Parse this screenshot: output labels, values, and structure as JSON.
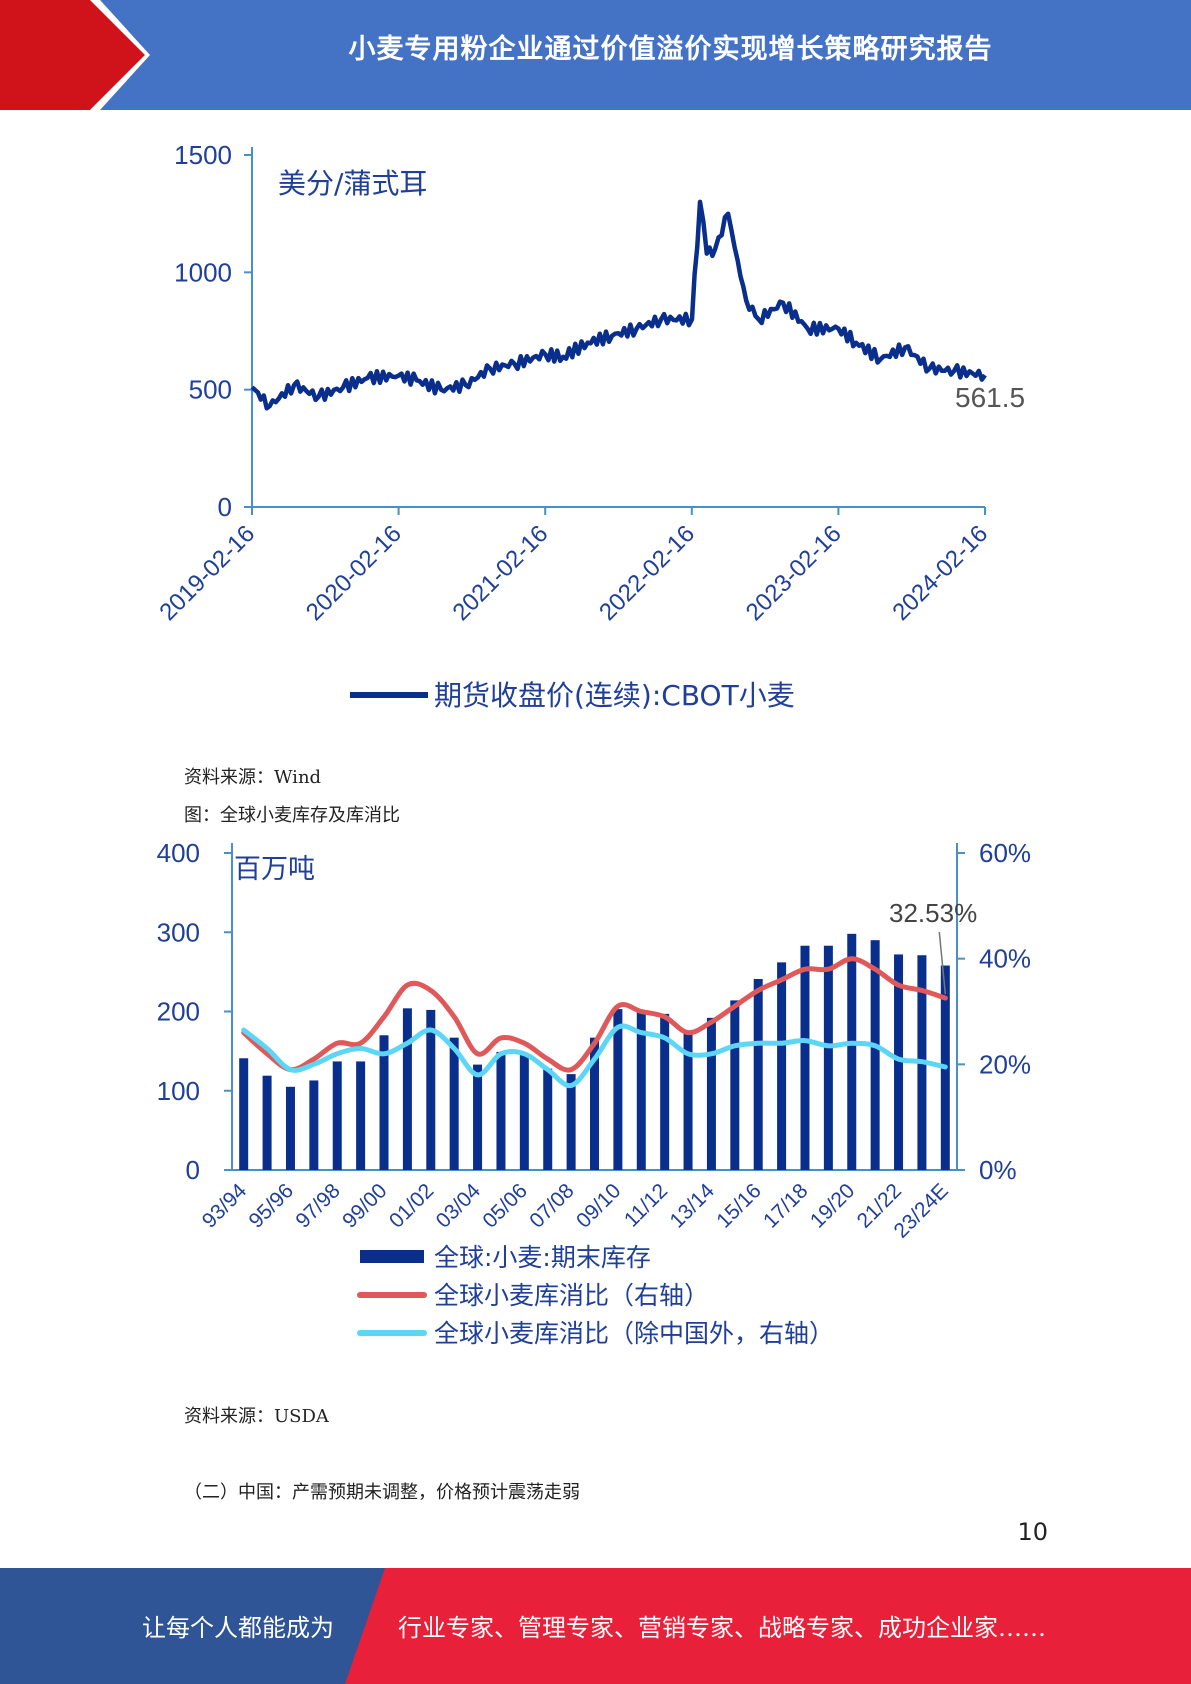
{
  "header": {
    "title": "小麦专用粉企业通过价值溢价实现增长策略研究报告"
  },
  "chart1": {
    "unit_label": "美分/蒲式耳",
    "end_label": "561.5",
    "y_ticks": [
      "0",
      "500",
      "1000",
      "1500"
    ],
    "x_ticks": [
      "2019-02-16",
      "2020-02-16",
      "2021-02-16",
      "2022-02-16",
      "2023-02-16",
      "2024-02-16"
    ],
    "legend": "期货收盘价(连续):CBOT小麦",
    "line_color": "#0a2e8c"
  },
  "caption1_source": "资料来源：Wind",
  "caption2_title": "图：全球小麦库存及库消比",
  "chart2": {
    "unit_label": "百万吨",
    "annotation": "32.53%",
    "left_ticks": [
      "0",
      "100",
      "200",
      "300",
      "400"
    ],
    "right_ticks": [
      "0%",
      "20%",
      "40%",
      "60%"
    ],
    "x_ticks": [
      "93/94",
      "95/96",
      "97/98",
      "99/00",
      "01/02",
      "03/04",
      "05/06",
      "07/08",
      "09/10",
      "11/12",
      "13/14",
      "15/16",
      "17/18",
      "19/20",
      "21/22",
      "23/24E"
    ],
    "legend": [
      "全球:小麦:期末库存",
      "全球小麦库消比（右轴）",
      "全球小麦库消比（除中国外，右轴）"
    ],
    "colors": {
      "bar": "#0a2e8c",
      "red": "#e0595a",
      "cyan": "#5dd5f5",
      "axis": "#4a90c8",
      "text": "#1f3f99"
    }
  },
  "caption3_source": "资料来源：USDA",
  "section_heading": "（二）中国：产需预期未调整，价格预计震荡走弱",
  "page_number": "10",
  "footer": {
    "left_text": "让每个人都能成为",
    "right_text": "行业专家、管理专家、营销专家、战略专家、成功企业家……"
  },
  "chart_data": [
    {
      "type": "line",
      "title": "",
      "ylabel": "美分/蒲式耳",
      "ylim": [
        0,
        1500
      ],
      "x_range": [
        "2019-02-16",
        "2024-02-16"
      ],
      "series": [
        {
          "name": "期货收盘价(连续):CBOT小麦",
          "x": [
            "2019-02-16",
            "2019-04-01",
            "2019-06-01",
            "2019-08-01",
            "2019-10-01",
            "2019-12-01",
            "2020-02-16",
            "2020-04-01",
            "2020-06-01",
            "2020-08-01",
            "2020-10-01",
            "2020-12-01",
            "2021-02-16",
            "2021-04-01",
            "2021-06-01",
            "2021-08-01",
            "2021-10-01",
            "2021-12-01",
            "2022-02-16",
            "2022-03-08",
            "2022-03-25",
            "2022-04-15",
            "2022-05-17",
            "2022-06-10",
            "2022-07-01",
            "2022-08-01",
            "2022-10-01",
            "2022-12-01",
            "2023-02-16",
            "2023-04-01",
            "2023-06-01",
            "2023-08-01",
            "2023-10-01",
            "2023-12-01",
            "2024-02-16"
          ],
          "y": [
            510,
            430,
            520,
            470,
            510,
            550,
            560,
            540,
            500,
            520,
            590,
            610,
            650,
            640,
            700,
            730,
            760,
            800,
            800,
            1300,
            1080,
            1100,
            1250,
            1050,
            880,
            800,
            870,
            760,
            760,
            700,
            630,
            680,
            590,
            580,
            561.5
          ]
        }
      ]
    },
    {
      "type": "bar",
      "title": "",
      "ylabel": "百万吨",
      "ylim": [
        0,
        400
      ],
      "y2lim": [
        0,
        0.6
      ],
      "categories": [
        "93/94",
        "94/95",
        "95/96",
        "96/97",
        "97/98",
        "98/99",
        "99/00",
        "00/01",
        "01/02",
        "02/03",
        "03/04",
        "04/05",
        "05/06",
        "06/07",
        "07/08",
        "08/09",
        "09/10",
        "10/11",
        "11/12",
        "12/13",
        "13/14",
        "14/15",
        "15/16",
        "16/17",
        "17/18",
        "18/19",
        "19/20",
        "20/21",
        "21/22",
        "22/23",
        "23/24E"
      ],
      "series": [
        {
          "name": "全球:小麦:期末库存",
          "axis": "left",
          "values": [
            141,
            119,
            105,
            113,
            137,
            137,
            170,
            204,
            202,
            167,
            133,
            149,
            147,
            128,
            121,
            167,
            203,
            199,
            197,
            176,
            192,
            214,
            241,
            262,
            283,
            283,
            298,
            290,
            272,
            271,
            258
          ]
        },
        {
          "name": "全球小麦库消比（右轴）",
          "axis": "right",
          "values": [
            0.26,
            0.22,
            0.19,
            0.21,
            0.24,
            0.24,
            0.29,
            0.35,
            0.34,
            0.29,
            0.22,
            0.25,
            0.24,
            0.21,
            0.19,
            0.24,
            0.31,
            0.3,
            0.29,
            0.26,
            0.28,
            0.31,
            0.34,
            0.36,
            0.38,
            0.38,
            0.4,
            0.38,
            0.35,
            0.34,
            0.3253
          ]
        },
        {
          "name": "全球小麦库消比（除中国外，右轴）",
          "axis": "right",
          "values": [
            0.265,
            0.23,
            0.19,
            0.2,
            0.22,
            0.23,
            0.22,
            0.24,
            0.265,
            0.23,
            0.18,
            0.22,
            0.22,
            0.19,
            0.16,
            0.21,
            0.27,
            0.26,
            0.25,
            0.22,
            0.22,
            0.235,
            0.24,
            0.24,
            0.245,
            0.235,
            0.24,
            0.235,
            0.21,
            0.205,
            0.195
          ]
        }
      ]
    }
  ]
}
